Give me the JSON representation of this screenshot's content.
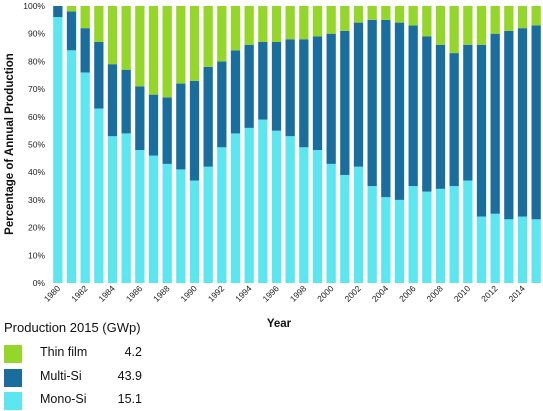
{
  "chart_data": {
    "type": "bar",
    "stacked": true,
    "percent_stacked": true,
    "xlabel": "Year",
    "ylabel": "Percentage of Annual Production",
    "ylim": [
      0,
      100
    ],
    "yticks": [
      "0%",
      "10%",
      "20%",
      "30%",
      "40%",
      "50%",
      "60%",
      "70%",
      "80%",
      "90%",
      "100%"
    ],
    "x_tick_labels": [
      "1980",
      "1982",
      "1984",
      "1986",
      "1988",
      "1990",
      "1992",
      "1994",
      "1996",
      "1998",
      "2000",
      "2002",
      "2004",
      "2006",
      "2008",
      "2010",
      "2012",
      "2014"
    ],
    "categories": [
      "1980",
      "1981",
      "1982",
      "1983",
      "1984",
      "1985",
      "1986",
      "1987",
      "1988",
      "1989",
      "1990",
      "1991",
      "1992",
      "1993",
      "1994",
      "1995",
      "1996",
      "1997",
      "1998",
      "1999",
      "2000",
      "2001",
      "2002",
      "2003",
      "2004",
      "2005",
      "2006",
      "2007",
      "2008",
      "2009",
      "2010",
      "2011",
      "2012",
      "2013",
      "2014",
      "2015"
    ],
    "series": [
      {
        "name": "Mono-Si",
        "color": "#5ce6f0",
        "values": [
          96,
          84,
          76,
          63,
          53,
          54,
          48,
          46,
          43,
          41,
          37,
          42,
          49,
          54,
          56,
          59,
          55,
          53,
          49,
          48,
          43,
          39,
          42,
          35,
          31,
          30,
          35,
          33,
          34,
          35,
          37,
          24,
          25,
          23,
          24,
          23
        ]
      },
      {
        "name": "Multi-Si",
        "color": "#1a6e9e",
        "values": [
          4,
          14,
          16,
          24,
          26,
          23,
          23,
          22,
          24,
          31,
          36,
          36,
          31,
          30,
          30,
          28,
          32,
          35,
          39,
          41,
          47,
          52,
          52,
          60,
          64,
          64,
          58,
          56,
          52,
          48,
          49,
          62,
          65,
          68,
          68,
          70
        ]
      },
      {
        "name": "Thin film",
        "color": "#95d62a",
        "values": [
          0,
          2,
          8,
          13,
          21,
          23,
          29,
          32,
          33,
          28,
          27,
          22,
          20,
          16,
          14,
          13,
          13,
          12,
          12,
          11,
          10,
          9,
          6,
          5,
          5,
          6,
          7,
          11,
          14,
          17,
          14,
          14,
          10,
          9,
          8,
          7
        ]
      }
    ],
    "grid": false
  },
  "legend": {
    "title": "Production 2015 (GWp)",
    "items": [
      {
        "label": "Thin film",
        "value": "4.2",
        "color": "#95d62a"
      },
      {
        "label": "Multi-Si",
        "value": "43.9",
        "color": "#1a6e9e"
      },
      {
        "label": "Mono-Si",
        "value": "15.1",
        "color": "#5ce6f0"
      }
    ]
  }
}
